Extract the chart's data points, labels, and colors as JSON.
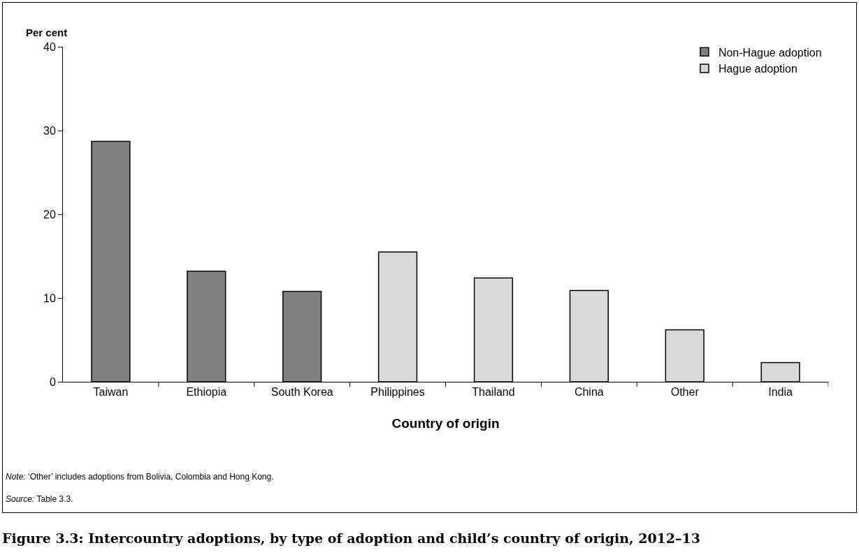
{
  "chart_data": {
    "type": "bar",
    "title": "Figure 3.3: Intercountry adoptions, by type of adoption and child’s country of origin, 2012–13",
    "xlabel": "Country of origin",
    "ylabel": "Per cent",
    "categories": [
      "Taiwan",
      "Ethiopia",
      "South Korea",
      "Philippines",
      "Thailand",
      "China",
      "Other",
      "India"
    ],
    "series": [
      {
        "name": "Non-Hague adoption",
        "color": "#808080",
        "values": [
          28.7,
          13.2,
          10.8,
          null,
          null,
          null,
          null,
          null
        ]
      },
      {
        "name": "Hague adoption",
        "color": "#d9d9d9",
        "values": [
          null,
          null,
          null,
          15.5,
          12.4,
          10.9,
          6.2,
          2.3
        ]
      }
    ],
    "ylim": [
      0,
      40
    ],
    "yticks": [
      0,
      10,
      20,
      30,
      40
    ],
    "grid": false,
    "legend": "top right",
    "annotations": [
      "Note: ‘Other’ includes adoptions from Bolivia, Colombia and Hong Kong.",
      "Source: Table 3.3."
    ]
  }
}
